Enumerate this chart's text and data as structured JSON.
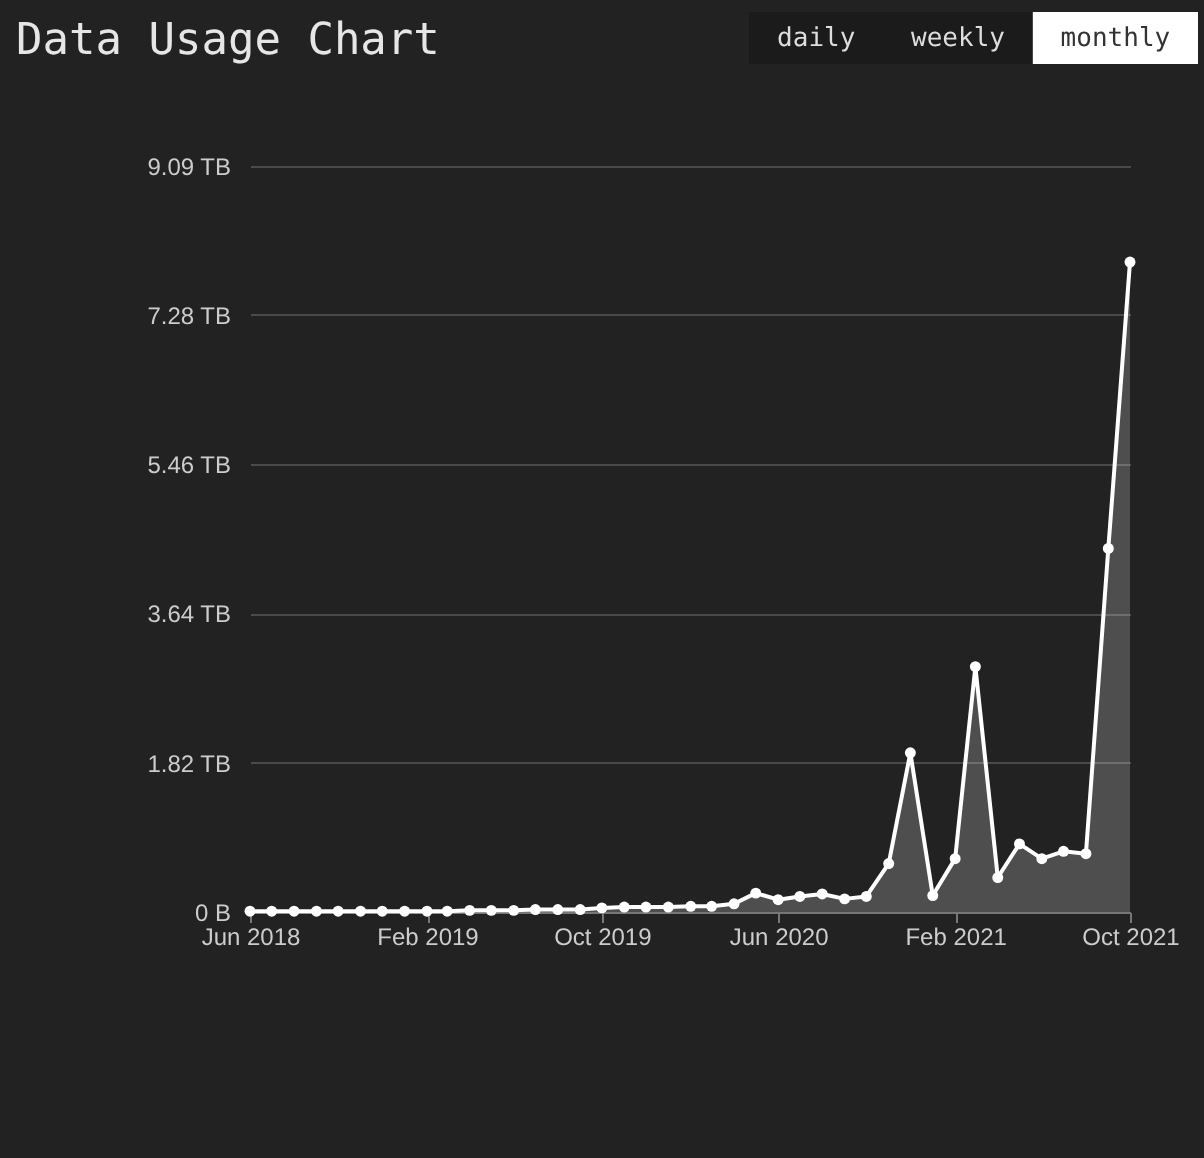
{
  "chart_data": {
    "type": "area",
    "title": "Data Usage Chart",
    "annotations": [
      "daily",
      "weekly",
      "monthly"
    ],
    "x": [
      "2018-06",
      "2018-07",
      "2018-08",
      "2018-09",
      "2018-10",
      "2018-11",
      "2018-12",
      "2019-01",
      "2019-02",
      "2019-03",
      "2019-04",
      "2019-05",
      "2019-06",
      "2019-07",
      "2019-08",
      "2019-09",
      "2019-10",
      "2019-11",
      "2019-12",
      "2020-01",
      "2020-02",
      "2020-03",
      "2020-04",
      "2020-05",
      "2020-06",
      "2020-07",
      "2020-08",
      "2020-09",
      "2020-10",
      "2020-11",
      "2020-12",
      "2021-01",
      "2021-02",
      "2021-03",
      "2021-04",
      "2021-05",
      "2021-06",
      "2021-07",
      "2021-08",
      "2021-09",
      "2021-10"
    ],
    "values": [
      0.01,
      0.01,
      0.01,
      0.01,
      0.01,
      0.01,
      0.01,
      0.01,
      0.01,
      0.01,
      0.02,
      0.02,
      0.02,
      0.03,
      0.03,
      0.03,
      0.05,
      0.06,
      0.06,
      0.06,
      0.07,
      0.07,
      0.1,
      0.23,
      0.15,
      0.19,
      0.22,
      0.16,
      0.19,
      0.59,
      1.94,
      0.2,
      0.65,
      2.99,
      0.42,
      0.83,
      0.65,
      0.74,
      0.71,
      4.43,
      7.92
    ],
    "color": "#ffffff",
    "marker": "circle",
    "line_style": "solid",
    "xlim": [
      "2018-06",
      "2021-10"
    ],
    "xticks": [
      {
        "value": "2018-06",
        "label": "Jun 2018"
      },
      {
        "value": "2019-02",
        "label": "Feb 2019"
      },
      {
        "value": "2019-10",
        "label": "Oct 2019"
      },
      {
        "value": "2020-06",
        "label": "Jun 2020"
      },
      {
        "value": "2021-02",
        "label": "Feb 2021"
      },
      {
        "value": "2021-10",
        "label": "Oct 2021"
      }
    ],
    "ylim": [
      0,
      9.09
    ],
    "yticks": [
      {
        "value": 0,
        "label": "0 B"
      },
      {
        "value": 1.82,
        "label": "1.82 TB"
      },
      {
        "value": 3.64,
        "label": "3.64 TB"
      },
      {
        "value": 5.46,
        "label": "5.46 TB"
      },
      {
        "value": 7.28,
        "label": "7.28 TB"
      },
      {
        "value": 9.09,
        "label": "9.09 TB"
      }
    ],
    "grid": "y"
  }
}
